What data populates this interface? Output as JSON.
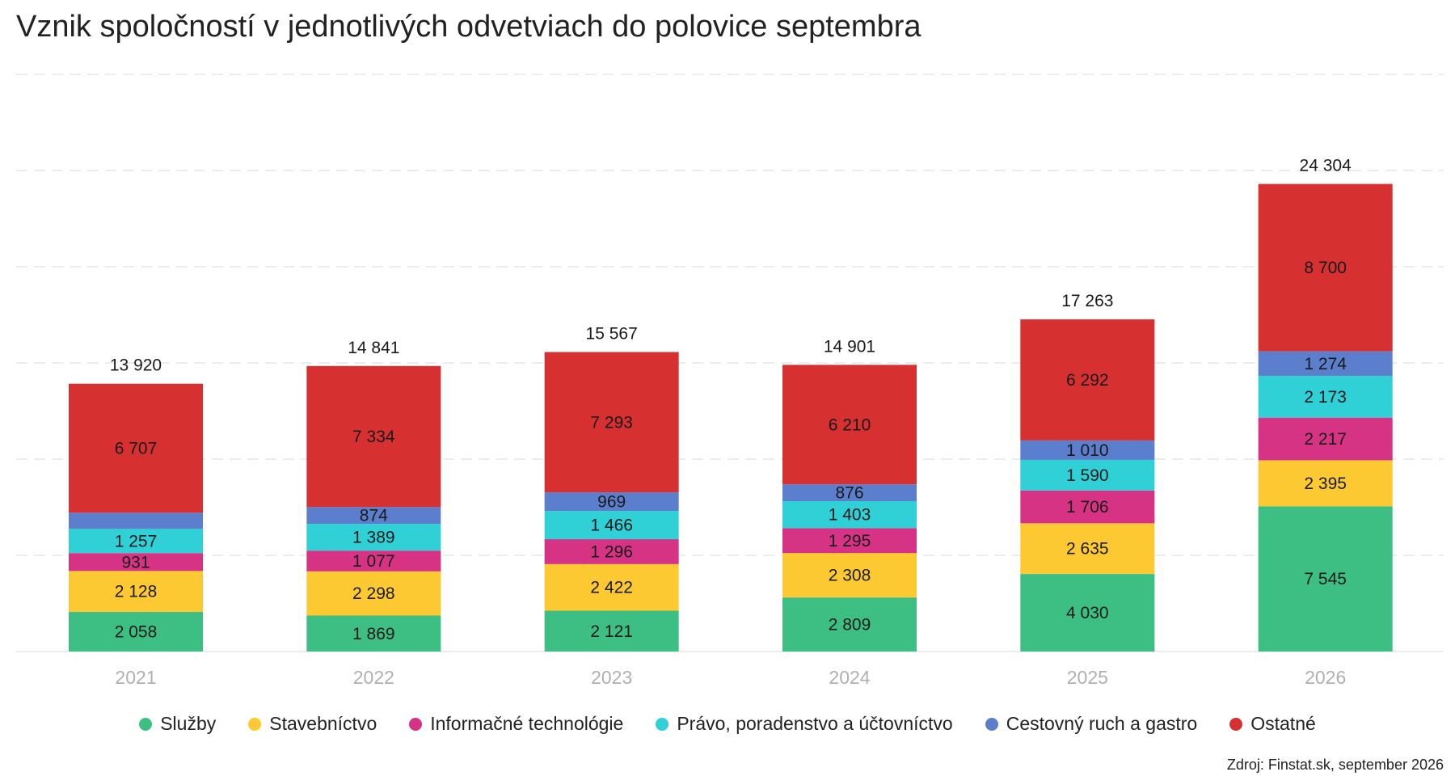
{
  "title": "Vznik spoločností v jednotlivých odvetviach do polovice septembra",
  "source": "Zdroj: Finstat.sk, september 2026",
  "chart_data": {
    "type": "bar",
    "stacked": true,
    "title": "Vznik spoločností v jednotlivých odvetviach do polovice septembra",
    "xlabel": "",
    "ylabel": "",
    "ylim": [
      0,
      30000
    ],
    "grid": true,
    "legend_position": "bottom",
    "categories": [
      "2021",
      "2022",
      "2023",
      "2024",
      "2025",
      "2026"
    ],
    "totals": [
      "13 920",
      "14 841",
      "15 567",
      "14 901",
      "17 263",
      "24 304"
    ],
    "series": [
      {
        "name": "Služby",
        "color": "#3dbf84",
        "values": [
          2058,
          1869,
          2121,
          2809,
          4030,
          7545
        ],
        "labels": [
          "2 058",
          "1 869",
          "2 121",
          "2 809",
          "4 030",
          "7 545"
        ]
      },
      {
        "name": "Stavebníctvo",
        "color": "#fcc932",
        "values": [
          2128,
          2298,
          2422,
          2308,
          2635,
          2395
        ],
        "labels": [
          "2 128",
          "2 298",
          "2 422",
          "2 308",
          "2 635",
          "2 395"
        ]
      },
      {
        "name": "Informačné technológie",
        "color": "#d63384",
        "values": [
          931,
          1077,
          1296,
          1295,
          1706,
          2217
        ],
        "labels": [
          "931",
          "1 077",
          "1 296",
          "1 295",
          "1 706",
          "2 217"
        ]
      },
      {
        "name": "Právo, poradenstvo a účtovníctvo",
        "color": "#2fd0d6",
        "values": [
          1257,
          1389,
          1466,
          1403,
          1590,
          2173
        ],
        "labels": [
          "1 257",
          "1 389",
          "1 466",
          "1 403",
          "1 590",
          "2 173"
        ]
      },
      {
        "name": "Cestovný ruch a gastro",
        "color": "#5b7fcc",
        "values": [
          839,
          874,
          969,
          876,
          1010,
          1274
        ],
        "labels": [
          "",
          "874",
          "969",
          "876",
          "1 010",
          "1 274"
        ]
      },
      {
        "name": "Ostatné",
        "color": "#d63031",
        "values": [
          6707,
          7334,
          7293,
          6210,
          6292,
          8700
        ],
        "labels": [
          "6 707",
          "7 334",
          "7 293",
          "6 210",
          "6 292",
          "8 700"
        ]
      }
    ]
  }
}
